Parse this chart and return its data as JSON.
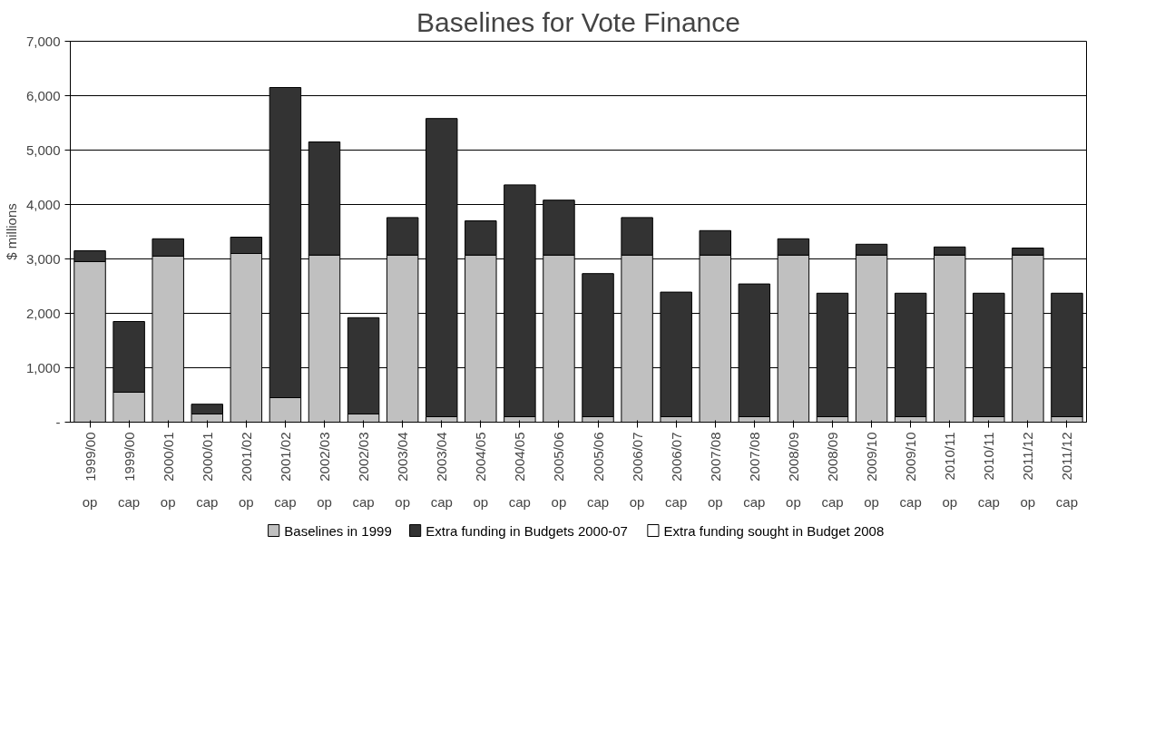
{
  "chart_data": {
    "type": "bar",
    "title": "Baselines for Vote Finance",
    "ylabel": "$ millions",
    "stacked": true,
    "categories": [
      "1999/00\nop",
      "1999/00\ncap",
      "2000/01\nop",
      "2000/01\ncap",
      "2001/02\nop",
      "2001/02\ncap",
      "2002/03\nop",
      "2002/03\ncap",
      "2003/04\nop",
      "2003/04\ncap",
      "2004/05\nop",
      "2004/05\ncap",
      "2005/06\nop",
      "2005/06\ncap",
      "2006/07\nop",
      "2006/07\ncap",
      "2007/08\nop",
      "2007/08\ncap",
      "2008/09\nop",
      "2008/09\ncap",
      "2009/10\nop",
      "2009/10\ncap",
      "2010/11\nop",
      "2010/11\ncap",
      "2011/12\nop",
      "2011/12\ncap"
    ],
    "series": [
      {
        "name": "Baselines in 1999",
        "color": "#c0c0c0",
        "values": [
          2950,
          550,
          3050,
          150,
          3100,
          450,
          3070,
          150,
          3070,
          100,
          3070,
          100,
          3070,
          100,
          3070,
          100,
          3070,
          100,
          3070,
          100,
          3070,
          100,
          3070,
          100,
          3070,
          100
        ]
      },
      {
        "name": "Extra funding in Budgets 2000-07",
        "color": "#333333",
        "values": [
          200,
          1300,
          320,
          180,
          300,
          5700,
          2080,
          1770,
          690,
          5480,
          630,
          4260,
          1010,
          2630,
          690,
          2290,
          450,
          2440,
          300,
          2270,
          200,
          2270,
          150,
          2270,
          130,
          2270
        ]
      },
      {
        "name": "Extra funding sought in Budget 2008",
        "color": "#ffffff",
        "values": [
          0,
          0,
          0,
          0,
          0,
          0,
          0,
          0,
          0,
          0,
          0,
          0,
          0,
          0,
          0,
          0,
          0,
          0,
          0,
          0,
          0,
          0,
          0,
          0,
          0,
          0
        ]
      }
    ],
    "ylim": [
      0,
      7000
    ],
    "yticks": [
      {
        "value": 0,
        "label": "-"
      },
      {
        "value": 1000,
        "label": "1,000"
      },
      {
        "value": 2000,
        "label": "2,000"
      },
      {
        "value": 3000,
        "label": "3,000"
      },
      {
        "value": 4000,
        "label": "4,000"
      },
      {
        "value": 5000,
        "label": "5,000"
      },
      {
        "value": 6000,
        "label": "6,000"
      },
      {
        "value": 7000,
        "label": "7,000"
      }
    ],
    "grid": "y",
    "legend": "bottom"
  }
}
